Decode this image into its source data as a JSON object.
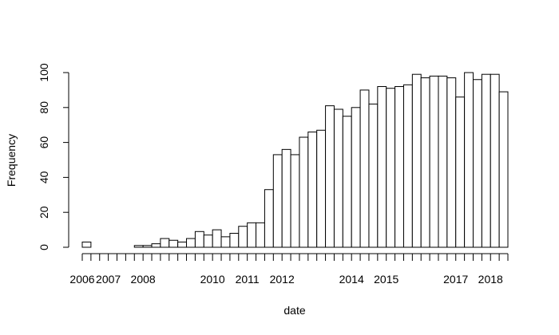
{
  "chart_data": {
    "type": "bar",
    "title": "",
    "xlabel": "date",
    "ylabel": "Frequency",
    "ylim": [
      0,
      100
    ],
    "yticks": [
      0,
      20,
      40,
      60,
      80,
      100
    ],
    "grid": false,
    "x_tick_labels": [
      "2006",
      "2007",
      "2008",
      "2010",
      "2011",
      "2012",
      "2014",
      "2015",
      "2017",
      "2018"
    ],
    "bin_width": "quarter",
    "bin_starts": [
      "2006-04",
      "2006-07",
      "2006-10",
      "2007-01",
      "2007-04",
      "2007-07",
      "2007-10",
      "2008-01",
      "2008-04",
      "2008-07",
      "2008-10",
      "2009-01",
      "2009-04",
      "2009-07",
      "2009-10",
      "2010-01",
      "2010-04",
      "2010-07",
      "2010-10",
      "2011-01",
      "2011-04",
      "2011-07",
      "2011-10",
      "2012-01",
      "2012-04",
      "2012-07",
      "2012-10",
      "2013-01",
      "2013-04",
      "2013-07",
      "2013-10",
      "2014-01",
      "2014-04",
      "2014-07",
      "2014-10",
      "2015-01",
      "2015-04",
      "2015-07",
      "2015-10",
      "2016-01",
      "2016-04",
      "2016-07",
      "2016-10",
      "2017-01",
      "2017-04",
      "2017-07",
      "2017-10",
      "2018-01",
      "2018-04"
    ],
    "values": [
      3,
      0,
      0,
      0,
      0,
      0,
      1,
      1,
      2,
      5,
      4,
      3,
      5,
      9,
      7,
      10,
      6,
      8,
      12,
      14,
      14,
      33,
      53,
      56,
      53,
      63,
      66,
      67,
      81,
      79,
      75,
      80,
      90,
      82,
      92,
      91,
      92,
      93,
      99,
      97,
      98,
      98,
      97,
      86,
      100,
      96,
      99,
      99,
      89
    ]
  }
}
